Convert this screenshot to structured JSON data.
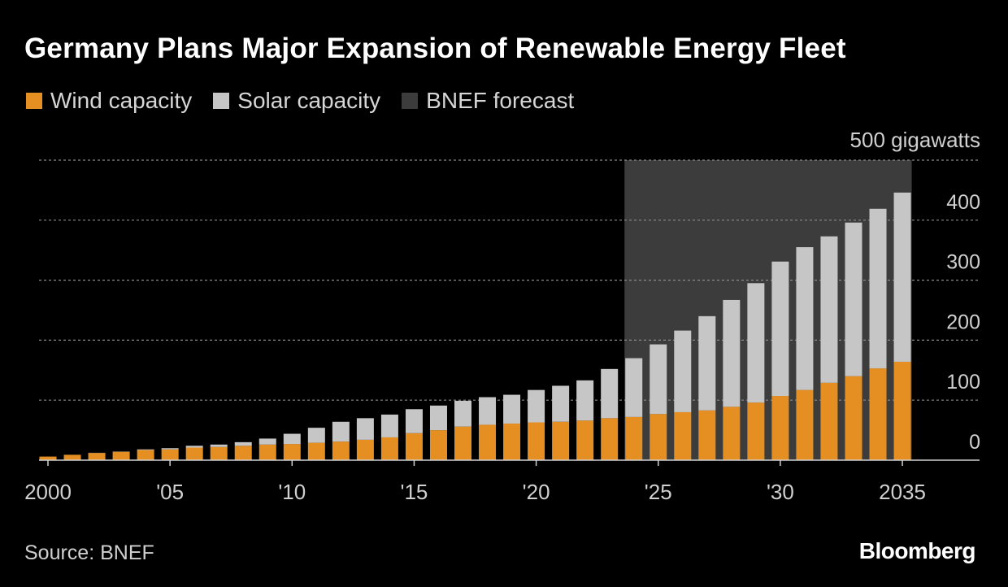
{
  "chart_data": {
    "type": "bar",
    "stacked": true,
    "title": "Germany Plans Major Expansion of Renewable Energy Fleet",
    "units_label": "500 gigawatts",
    "ylim": [
      0,
      500
    ],
    "yticks": [
      0,
      100,
      200,
      300,
      400
    ],
    "x": [
      2000,
      2001,
      2002,
      2003,
      2004,
      2005,
      2006,
      2007,
      2008,
      2009,
      2010,
      2011,
      2012,
      2013,
      2014,
      2015,
      2016,
      2017,
      2018,
      2019,
      2020,
      2021,
      2022,
      2023,
      2024,
      2025,
      2026,
      2027,
      2028,
      2029,
      2030,
      2031,
      2032,
      2033,
      2034,
      2035
    ],
    "xtick_labels": [
      {
        "x": 2000,
        "label": "2000"
      },
      {
        "x": 2005,
        "label": "'05"
      },
      {
        "x": 2010,
        "label": "'10"
      },
      {
        "x": 2015,
        "label": "'15"
      },
      {
        "x": 2020,
        "label": "'20"
      },
      {
        "x": 2025,
        "label": "'25"
      },
      {
        "x": 2030,
        "label": "'30"
      },
      {
        "x": 2035,
        "label": "2035"
      }
    ],
    "series": [
      {
        "name": "Wind capacity",
        "color": "#e58f23",
        "values": [
          6,
          9,
          12,
          14,
          17,
          18,
          21,
          22,
          24,
          26,
          27,
          29,
          31,
          34,
          38,
          45,
          50,
          56,
          59,
          61,
          63,
          64,
          66,
          70,
          72,
          77,
          80,
          83,
          89,
          96,
          107,
          117,
          129,
          140,
          153,
          164
        ]
      },
      {
        "name": "Solar capacity",
        "color": "#c6c6c6",
        "values": [
          0,
          0,
          0.3,
          0.4,
          1,
          2,
          3,
          4,
          6,
          10,
          17,
          25,
          33,
          36,
          38,
          40,
          41,
          43,
          46,
          48,
          54,
          60,
          67,
          82,
          98,
          116,
          136,
          157,
          178,
          199,
          224,
          238,
          244,
          256,
          266,
          282
        ]
      }
    ],
    "forecast_band": {
      "name": "BNEF forecast",
      "color": "#3c3c3c",
      "from_year": 2024,
      "to_year": 2035
    },
    "grid": true,
    "legend_position": "top-left"
  },
  "source": "Source: BNEF",
  "brand": "Bloomberg"
}
